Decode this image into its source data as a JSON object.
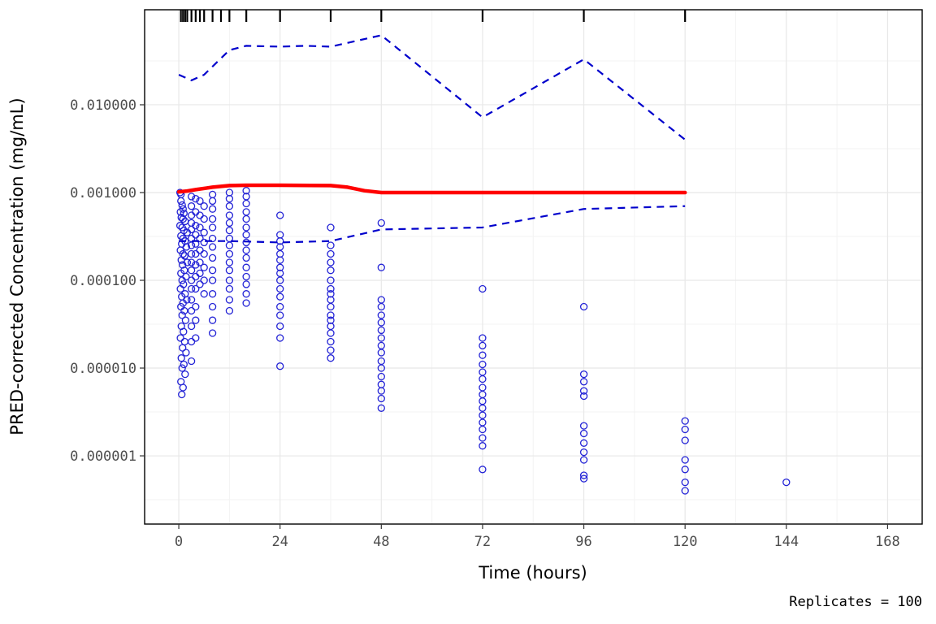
{
  "chart_data": {
    "type": "scatter",
    "title": "",
    "xlabel": "Time (hours)",
    "ylabel": "PRED-corrected Concentration (mg/mL)",
    "caption": "Replicates = 100",
    "x_scale": "linear",
    "y_scale": "log10",
    "grid": true,
    "legend": "none",
    "xlim": [
      -8.1,
      176.2
    ],
    "ylim": [
      1.67e-07,
      0.121
    ],
    "x_tick_values": [
      0,
      24,
      48,
      72,
      96,
      120,
      144,
      168
    ],
    "x_tick_labels": [
      "0",
      "24",
      "48",
      "72",
      "96",
      "120",
      "144",
      "168"
    ],
    "y_tick_values": [
      0.01,
      0.001,
      0.0001,
      1e-05,
      1e-06
    ],
    "y_tick_labels": [
      "0.010000",
      "0.001000",
      "0.000100",
      "0.000010",
      "0.000001"
    ],
    "colors": {
      "observation": "#2323d6",
      "median_line": "#ff0000",
      "interval_line": "#0000cc",
      "rug": "#000000",
      "grid_major": "#e8e8e8",
      "grid_minor": "#f3f3f3",
      "panel_border": "#000000"
    },
    "rug_times": [
      0.5,
      1,
      1.5,
      2,
      3,
      4,
      5,
      6,
      8,
      10,
      12,
      16,
      24,
      36,
      48,
      72,
      96,
      120
    ],
    "median_line": [
      [
        0,
        0.00102
      ],
      [
        2,
        0.00104
      ],
      [
        4,
        0.00108
      ],
      [
        8,
        0.00115
      ],
      [
        12,
        0.0012
      ],
      [
        16,
        0.00121
      ],
      [
        24,
        0.00121
      ],
      [
        36,
        0.0012
      ],
      [
        40,
        0.00115
      ],
      [
        44,
        0.00105
      ],
      [
        48,
        0.001
      ],
      [
        72,
        0.001
      ],
      [
        96,
        0.001
      ],
      [
        120,
        0.001
      ]
    ],
    "upper_interval": [
      [
        0,
        0.022
      ],
      [
        3,
        0.019
      ],
      [
        6,
        0.022
      ],
      [
        12,
        0.042
      ],
      [
        16,
        0.047
      ],
      [
        24,
        0.046
      ],
      [
        30,
        0.047
      ],
      [
        36,
        0.046
      ],
      [
        48,
        0.062
      ],
      [
        72,
        0.0072
      ],
      [
        96,
        0.033
      ],
      [
        120,
        0.004
      ]
    ],
    "lower_interval": [
      [
        0,
        0.00028
      ],
      [
        12,
        0.00028
      ],
      [
        24,
        0.00027
      ],
      [
        36,
        0.00028
      ],
      [
        48,
        0.00038
      ],
      [
        72,
        0.0004
      ],
      [
        96,
        0.00065
      ],
      [
        120,
        0.0007
      ]
    ],
    "observations": [
      [
        0.3,
        0.001
      ],
      [
        0.5,
        0.00095
      ],
      [
        0.5,
        0.0008
      ],
      [
        0.8,
        0.00072
      ],
      [
        1,
        0.00065
      ],
      [
        0.4,
        0.0006
      ],
      [
        1.2,
        0.00058
      ],
      [
        0.6,
        0.00052
      ],
      [
        1,
        0.0005
      ],
      [
        1.5,
        0.00047
      ],
      [
        0.3,
        0.00042
      ],
      [
        0.8,
        0.0004
      ],
      [
        1.2,
        0.00037
      ],
      [
        2,
        0.00035
      ],
      [
        0.5,
        0.00032
      ],
      [
        1,
        0.0003
      ],
      [
        1.5,
        0.00028
      ],
      [
        0.7,
        0.00026
      ],
      [
        1.8,
        0.00024
      ],
      [
        0.4,
        0.00022
      ],
      [
        1,
        0.0002
      ],
      [
        1.4,
        0.00019
      ],
      [
        0.6,
        0.00017
      ],
      [
        2,
        0.00016
      ],
      [
        0.9,
        0.00015
      ],
      [
        1.3,
        0.00013
      ],
      [
        0.5,
        0.00012
      ],
      [
        1.7,
        0.00011
      ],
      [
        0.8,
        0.0001
      ],
      [
        1.1,
        9e-05
      ],
      [
        0.4,
        8e-05
      ],
      [
        1.5,
        7e-05
      ],
      [
        0.7,
        6.5e-05
      ],
      [
        1.9,
        6e-05
      ],
      [
        1,
        5.5e-05
      ],
      [
        0.5,
        5e-05
      ],
      [
        1.3,
        4.5e-05
      ],
      [
        0.8,
        4e-05
      ],
      [
        1.6,
        3.5e-05
      ],
      [
        0.6,
        3e-05
      ],
      [
        1.1,
        2.6e-05
      ],
      [
        0.4,
        2.2e-05
      ],
      [
        1.4,
        2e-05
      ],
      [
        0.9,
        1.7e-05
      ],
      [
        1.7,
        1.5e-05
      ],
      [
        0.6,
        1.3e-05
      ],
      [
        1.2,
        1.1e-05
      ],
      [
        0.8,
        1e-05
      ],
      [
        1.5,
        8.5e-06
      ],
      [
        0.5,
        7e-06
      ],
      [
        1,
        6e-06
      ],
      [
        0.7,
        5e-06
      ],
      [
        3,
        0.0009
      ],
      [
        3,
        0.0007
      ],
      [
        3,
        0.00055
      ],
      [
        3,
        0.00045
      ],
      [
        3,
        0.00038
      ],
      [
        3,
        0.0003
      ],
      [
        3,
        0.00025
      ],
      [
        3,
        0.0002
      ],
      [
        3,
        0.00016
      ],
      [
        3,
        0.00013
      ],
      [
        3,
        0.0001
      ],
      [
        3,
        8e-05
      ],
      [
        3,
        6e-05
      ],
      [
        3,
        4.5e-05
      ],
      [
        3,
        3e-05
      ],
      [
        3,
        2e-05
      ],
      [
        3,
        1.2e-05
      ],
      [
        4,
        0.00085
      ],
      [
        4,
        0.0006
      ],
      [
        4,
        0.00042
      ],
      [
        4,
        0.00033
      ],
      [
        4,
        0.00026
      ],
      [
        4,
        0.0002
      ],
      [
        4,
        0.00015
      ],
      [
        4,
        0.00011
      ],
      [
        4,
        8e-05
      ],
      [
        4,
        5e-05
      ],
      [
        4,
        3.5e-05
      ],
      [
        4,
        2.2e-05
      ],
      [
        5,
        0.0008
      ],
      [
        5,
        0.00055
      ],
      [
        5,
        0.0004
      ],
      [
        5,
        0.0003
      ],
      [
        5,
        0.00022
      ],
      [
        5,
        0.00016
      ],
      [
        5,
        0.00012
      ],
      [
        5,
        9e-05
      ],
      [
        6,
        0.0007
      ],
      [
        6,
        0.0005
      ],
      [
        6,
        0.00035
      ],
      [
        6,
        0.00027
      ],
      [
        6,
        0.0002
      ],
      [
        6,
        0.00014
      ],
      [
        6,
        0.0001
      ],
      [
        6,
        7e-05
      ],
      [
        8,
        0.00095
      ],
      [
        8,
        0.0008
      ],
      [
        8,
        0.00065
      ],
      [
        8,
        0.0005
      ],
      [
        8,
        0.0004
      ],
      [
        8,
        0.0003
      ],
      [
        8,
        0.00024
      ],
      [
        8,
        0.00018
      ],
      [
        8,
        0.00013
      ],
      [
        8,
        0.0001
      ],
      [
        8,
        7e-05
      ],
      [
        8,
        5e-05
      ],
      [
        8,
        3.5e-05
      ],
      [
        8,
        2.5e-05
      ],
      [
        12,
        0.001
      ],
      [
        12,
        0.00085
      ],
      [
        12,
        0.0007
      ],
      [
        12,
        0.00055
      ],
      [
        12,
        0.00045
      ],
      [
        12,
        0.00037
      ],
      [
        12,
        0.0003
      ],
      [
        12,
        0.00025
      ],
      [
        12,
        0.0002
      ],
      [
        12,
        0.00016
      ],
      [
        12,
        0.00013
      ],
      [
        12,
        0.0001
      ],
      [
        12,
        8e-05
      ],
      [
        12,
        6e-05
      ],
      [
        12,
        4.5e-05
      ],
      [
        16,
        0.00105
      ],
      [
        16,
        0.0009
      ],
      [
        16,
        0.00075
      ],
      [
        16,
        0.0006
      ],
      [
        16,
        0.0005
      ],
      [
        16,
        0.0004
      ],
      [
        16,
        0.00033
      ],
      [
        16,
        0.00027
      ],
      [
        16,
        0.00022
      ],
      [
        16,
        0.00018
      ],
      [
        16,
        0.00014
      ],
      [
        16,
        0.00011
      ],
      [
        16,
        9e-05
      ],
      [
        16,
        7e-05
      ],
      [
        16,
        5.5e-05
      ],
      [
        24,
        0.00055
      ],
      [
        24,
        0.00033
      ],
      [
        24,
        0.00028
      ],
      [
        24,
        0.00024
      ],
      [
        24,
        0.0002
      ],
      [
        24,
        0.00017
      ],
      [
        24,
        0.00014
      ],
      [
        24,
        0.00012
      ],
      [
        24,
        0.0001
      ],
      [
        24,
        8e-05
      ],
      [
        24,
        6.5e-05
      ],
      [
        24,
        5e-05
      ],
      [
        24,
        4e-05
      ],
      [
        24,
        3e-05
      ],
      [
        24,
        2.2e-05
      ],
      [
        24,
        1.05e-05
      ],
      [
        36,
        0.0004
      ],
      [
        36,
        0.00025
      ],
      [
        36,
        0.0002
      ],
      [
        36,
        0.00016
      ],
      [
        36,
        0.00013
      ],
      [
        36,
        0.0001
      ],
      [
        36,
        8e-05
      ],
      [
        36,
        7e-05
      ],
      [
        36,
        6e-05
      ],
      [
        36,
        5e-05
      ],
      [
        36,
        4e-05
      ],
      [
        36,
        3.5e-05
      ],
      [
        36,
        3e-05
      ],
      [
        36,
        2.5e-05
      ],
      [
        36,
        2e-05
      ],
      [
        36,
        1.6e-05
      ],
      [
        36,
        1.3e-05
      ],
      [
        48,
        0.00045
      ],
      [
        48,
        0.00014
      ],
      [
        48,
        6e-05
      ],
      [
        48,
        5e-05
      ],
      [
        48,
        4e-05
      ],
      [
        48,
        3.3e-05
      ],
      [
        48,
        2.7e-05
      ],
      [
        48,
        2.2e-05
      ],
      [
        48,
        1.8e-05
      ],
      [
        48,
        1.5e-05
      ],
      [
        48,
        1.2e-05
      ],
      [
        48,
        1e-05
      ],
      [
        48,
        8e-06
      ],
      [
        48,
        6.5e-06
      ],
      [
        48,
        5.5e-06
      ],
      [
        48,
        4.5e-06
      ],
      [
        48,
        3.5e-06
      ],
      [
        72,
        8e-05
      ],
      [
        72,
        2.2e-05
      ],
      [
        72,
        1.8e-05
      ],
      [
        72,
        1.4e-05
      ],
      [
        72,
        1.1e-05
      ],
      [
        72,
        9e-06
      ],
      [
        72,
        7.5e-06
      ],
      [
        72,
        6e-06
      ],
      [
        72,
        5e-06
      ],
      [
        72,
        4.2e-06
      ],
      [
        72,
        3.5e-06
      ],
      [
        72,
        2.9e-06
      ],
      [
        72,
        2.4e-06
      ],
      [
        72,
        2e-06
      ],
      [
        72,
        1.6e-06
      ],
      [
        72,
        1.3e-06
      ],
      [
        72,
        7e-07
      ],
      [
        96,
        5e-05
      ],
      [
        96,
        8.5e-06
      ],
      [
        96,
        7e-06
      ],
      [
        96,
        5.5e-06
      ],
      [
        96,
        4.8e-06
      ],
      [
        96,
        2.2e-06
      ],
      [
        96,
        1.8e-06
      ],
      [
        96,
        1.4e-06
      ],
      [
        96,
        1.1e-06
      ],
      [
        96,
        9e-07
      ],
      [
        96,
        6e-07
      ],
      [
        96,
        5.5e-07
      ],
      [
        120,
        2.5e-06
      ],
      [
        120,
        2e-06
      ],
      [
        120,
        1.5e-06
      ],
      [
        120,
        9e-07
      ],
      [
        120,
        7e-07
      ],
      [
        120,
        5e-07
      ],
      [
        120,
        4e-07
      ],
      [
        144,
        5e-07
      ]
    ]
  }
}
